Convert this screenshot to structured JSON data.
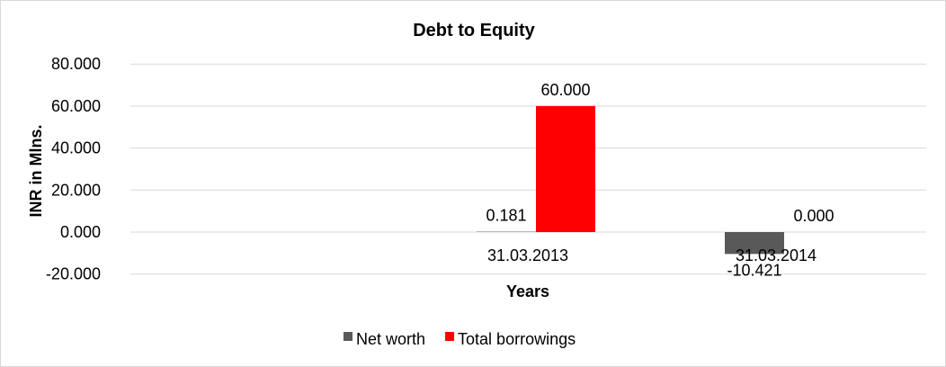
{
  "chart_data": {
    "type": "bar",
    "title": "Debt to Equity",
    "xlabel": "Years",
    "ylabel": "INR in Mlns.",
    "categories": [
      "",
      "31.03.2013",
      "31.03.2014"
    ],
    "series": [
      {
        "name": "Net worth",
        "color": "#595959",
        "values": [
          null,
          0.181,
          -10.421
        ],
        "labels": [
          "",
          "0.181",
          "-10.421"
        ]
      },
      {
        "name": "Total borrowings",
        "color": "#ff0000",
        "values": [
          null,
          60.0,
          0.0
        ],
        "labels": [
          "",
          "60.000",
          "0.000"
        ]
      }
    ],
    "ylim": [
      -20,
      80
    ],
    "yticks": [
      "80.000",
      "60.000",
      "40.000",
      "20.000",
      "0.000",
      "-20.000"
    ],
    "ytick_values": [
      80,
      60,
      40,
      20,
      0,
      -20
    ],
    "grid": true,
    "legend": "bottom"
  }
}
